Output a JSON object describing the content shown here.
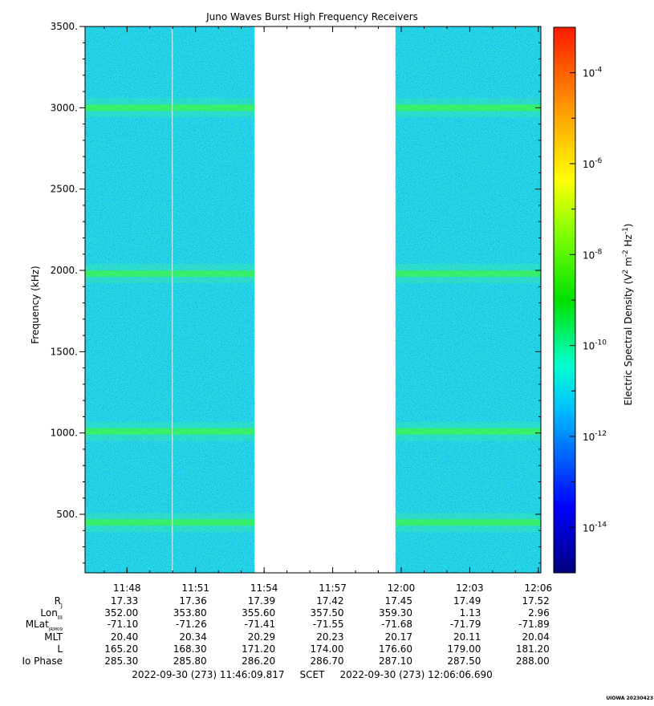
{
  "chart_data": {
    "type": "heatmap",
    "title": "Juno Waves Burst High Frequency Receivers",
    "ylabel": "Frequency (kHz)",
    "ylim": [
      140,
      3500
    ],
    "yticks": [
      500,
      1000,
      1500,
      2000,
      2500,
      3000,
      3500
    ],
    "ytick_labels": [
      "500.",
      "1000.",
      "1500.",
      "2000.",
      "2500.",
      "3000.",
      "3500."
    ],
    "xlim": [
      "11:46:09.817",
      "12:06:06.690"
    ],
    "xticks": [
      "11:48",
      "11:51",
      "11:54",
      "11:57",
      "12:00",
      "12:03",
      "12:06"
    ],
    "data_gaps": [
      [
        "11:49:58",
        "11:50:00"
      ],
      [
        "11:53:35",
        "11:59:45"
      ]
    ],
    "emission_bands_khz": [
      3000,
      1980,
      1010,
      450
    ],
    "background_level": 1e-12,
    "colorbar": {
      "label": "Electric Spectral Density (V² m⁻² Hz⁻¹)",
      "label_parts": {
        "main": "Electric Spectral Density (V",
        "exp1": "2",
        "mid": " m",
        "exp2": "-2",
        "mid2": " Hz",
        "exp3": "-1",
        "end": ")"
      },
      "scale": "log",
      "range": [
        1e-15,
        0.001
      ],
      "ticks": [
        {
          "base": "10",
          "exp": "-4",
          "value": 0.0001
        },
        {
          "base": "10",
          "exp": "-6",
          "value": 1e-06
        },
        {
          "base": "10",
          "exp": "-8",
          "value": 1e-08
        },
        {
          "base": "10",
          "exp": "-10",
          "value": 1e-10
        },
        {
          "base": "10",
          "exp": "-12",
          "value": 1e-12
        },
        {
          "base": "10",
          "exp": "-14",
          "value": 1e-14
        }
      ]
    },
    "ephemeris": {
      "rows": [
        {
          "label": "R",
          "sub": "J",
          "values": [
            "17.33",
            "17.36",
            "17.39",
            "17.42",
            "17.45",
            "17.49",
            "17.52"
          ]
        },
        {
          "label": "Lon",
          "sub": "III",
          "values": [
            "352.00",
            "353.80",
            "355.60",
            "357.50",
            "359.30",
            "1.13",
            "2.96"
          ]
        },
        {
          "label": "MLat",
          "sub": "JRM09",
          "values": [
            "-71.10",
            "-71.26",
            "-71.41",
            "-71.55",
            "-71.68",
            "-71.79",
            "-71.89"
          ]
        },
        {
          "label": "MLT",
          "sub": "",
          "values": [
            "20.40",
            "20.34",
            "20.29",
            "20.23",
            "20.17",
            "20.11",
            "20.04"
          ]
        },
        {
          "label": "L",
          "sub": "",
          "values": [
            "165.20",
            "168.30",
            "171.20",
            "174.00",
            "176.60",
            "179.00",
            "181.20"
          ]
        },
        {
          "label": "Io Phase",
          "sub": "",
          "values": [
            "285.30",
            "285.80",
            "286.20",
            "286.70",
            "287.10",
            "287.50",
            "288.00"
          ]
        }
      ]
    },
    "time_range_text": "2022-09-30 (273) 11:46:09.817     SCET     2022-09-30 (273) 12:06:06.690",
    "footer_stamp": "UIOWA 20230423"
  }
}
